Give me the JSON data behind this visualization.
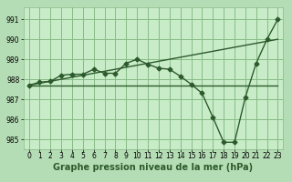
{
  "background_color": "#b5ddb5",
  "plot_bg_color": "#c8ecc8",
  "grid_color": "#88bb88",
  "line_color": "#2d5a2d",
  "title": "Graphe pression niveau de la mer (hPa)",
  "ylabel_ticks": [
    985,
    986,
    987,
    988,
    989,
    990,
    991
  ],
  "xlim": [
    -0.5,
    23.5
  ],
  "ylim": [
    984.5,
    991.6
  ],
  "line1_x": [
    0,
    1,
    2,
    3,
    4,
    5,
    6,
    7,
    8,
    9,
    10,
    11,
    12,
    13,
    14,
    15,
    16,
    17,
    18,
    19,
    20,
    21,
    22,
    23
  ],
  "line1_y": [
    987.7,
    987.85,
    987.9,
    988.2,
    988.25,
    988.25,
    988.5,
    988.3,
    988.3,
    988.8,
    989.0,
    988.75,
    988.55,
    988.5,
    988.15,
    987.75,
    987.3,
    986.1,
    984.85,
    984.85,
    987.1,
    988.8,
    990.0,
    991.0
  ],
  "line2_x": [
    0,
    23
  ],
  "line2_y": [
    987.7,
    987.7
  ],
  "line3_x": [
    0,
    23
  ],
  "line3_y": [
    987.7,
    990.0
  ],
  "xticks": [
    0,
    1,
    2,
    3,
    4,
    5,
    6,
    7,
    8,
    9,
    10,
    11,
    12,
    13,
    14,
    15,
    16,
    17,
    18,
    19,
    20,
    21,
    22,
    23
  ],
  "tick_fontsize": 5.5,
  "title_fontsize": 7.0,
  "marker_size": 2.5,
  "line_width": 1.0
}
